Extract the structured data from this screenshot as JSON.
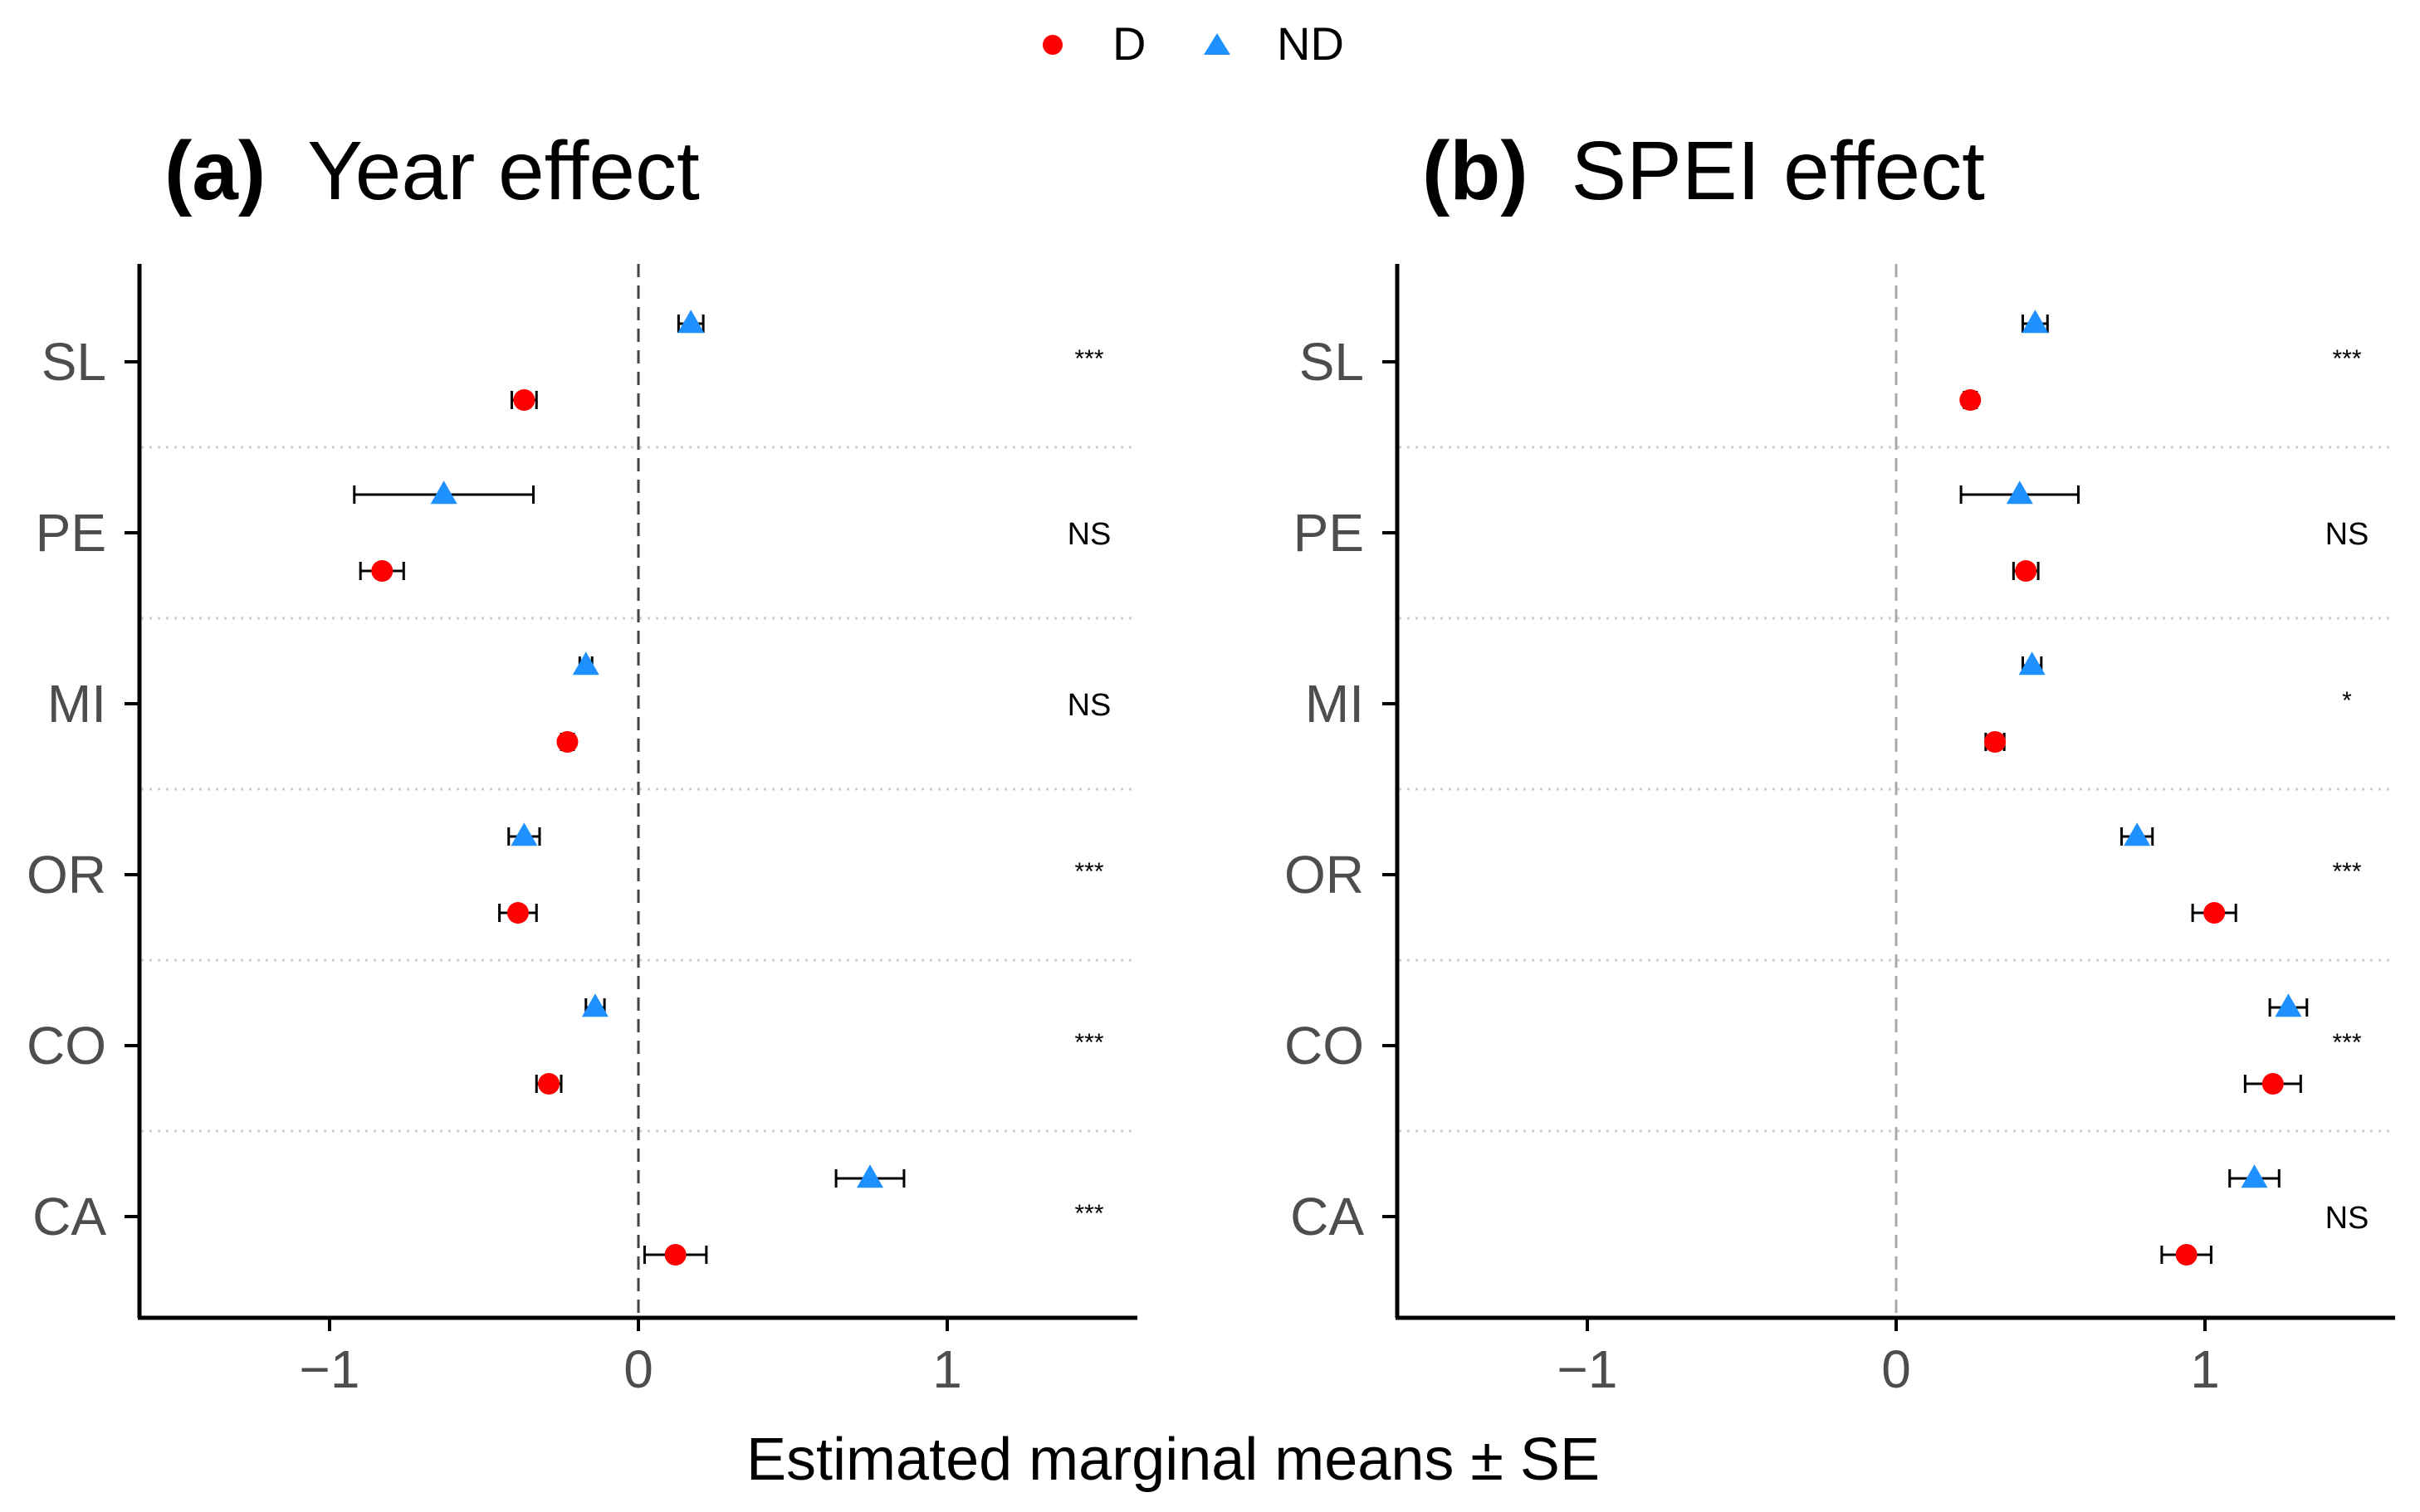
{
  "legend": {
    "items": [
      {
        "label": "D",
        "shape": "circle",
        "color": "#FF0000"
      },
      {
        "label": "ND",
        "shape": "triangle",
        "color": "#1E90FF"
      }
    ]
  },
  "xlabel": "Estimated marginal means ± SE",
  "colors": {
    "D": "#FF0000",
    "ND": "#1E90FF",
    "axis": "#000000",
    "tick_label": "#4D4D4D"
  },
  "chart_data": [
    {
      "type": "scatter",
      "panel_tag": "(a)",
      "title": "Year effect",
      "xlabel": "Estimated marginal means ± SE",
      "ylabel": "",
      "xlim": [
        -1.63,
        1.63
      ],
      "x_ticks": [
        -1,
        0,
        1
      ],
      "x_tick_labels": [
        "−1",
        "0",
        "1"
      ],
      "reference_line": 0,
      "categories": [
        "SL",
        "PE",
        "MI",
        "OR",
        "CO",
        "CA"
      ],
      "series": [
        {
          "name": "ND",
          "shape": "triangle",
          "values": [
            0.17,
            -0.63,
            -0.17,
            -0.37,
            -0.14,
            0.75
          ],
          "se": [
            0.04,
            0.29,
            0.02,
            0.05,
            0.03,
            0.11
          ]
        },
        {
          "name": "D",
          "shape": "circle",
          "values": [
            -0.37,
            -0.83,
            -0.23,
            -0.39,
            -0.29,
            0.12
          ],
          "se": [
            0.04,
            0.07,
            0.02,
            0.06,
            0.04,
            0.1
          ]
        }
      ],
      "significance": [
        "***",
        "NS",
        "NS",
        "***",
        "***",
        "***"
      ]
    },
    {
      "type": "scatter",
      "panel_tag": "(b)",
      "title": "SPEI effect",
      "xlabel": "Estimated marginal means ± SE",
      "ylabel": "",
      "xlim": [
        -1.63,
        1.63
      ],
      "x_ticks": [
        -1,
        0,
        1
      ],
      "x_tick_labels": [
        "−1",
        "0",
        "1"
      ],
      "reference_line": 0,
      "categories": [
        "SL",
        "PE",
        "MI",
        "OR",
        "CO",
        "CA"
      ],
      "series": [
        {
          "name": "ND",
          "shape": "triangle",
          "values": [
            0.45,
            0.4,
            0.44,
            0.78,
            1.27,
            1.16
          ],
          "se": [
            0.04,
            0.19,
            0.03,
            0.05,
            0.06,
            0.08
          ]
        },
        {
          "name": "D",
          "shape": "circle",
          "values": [
            0.24,
            0.42,
            0.32,
            1.03,
            1.22,
            0.94
          ],
          "se": [
            0.02,
            0.04,
            0.03,
            0.07,
            0.09,
            0.08
          ]
        }
      ],
      "significance": [
        "***",
        "NS",
        "*",
        "***",
        "***",
        "NS"
      ]
    }
  ]
}
